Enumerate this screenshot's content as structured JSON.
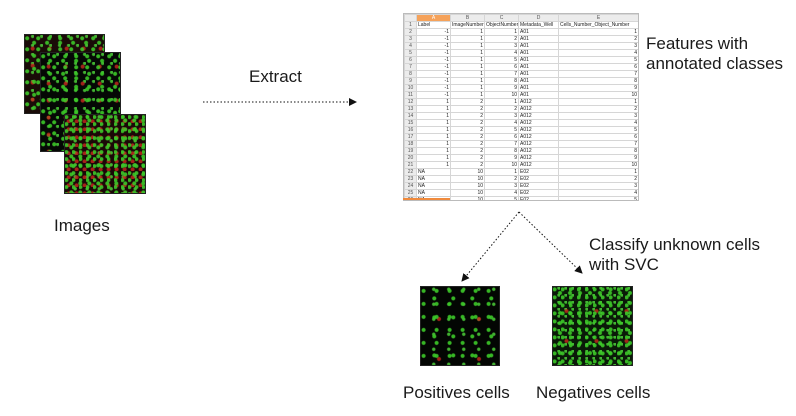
{
  "labels": {
    "extract": "Extract",
    "features": "Features with\nannotated classes",
    "images": "Images",
    "classify": "Classify unknown cells\nwith SVC",
    "positives": "Positives cells",
    "negatives": "Negatives cells"
  },
  "spreadsheet": {
    "column_letters": [
      "",
      "A",
      "B",
      "C",
      "D",
      "E"
    ],
    "headers": [
      "Label",
      "ImageNumber",
      "ObjectNumber",
      "Metadata_Well",
      "Cells_Number_Object_Number"
    ],
    "rows": [
      {
        "n": "2",
        "cells": [
          "-1",
          "1",
          "1",
          "A01",
          "1"
        ]
      },
      {
        "n": "3",
        "cells": [
          "-1",
          "1",
          "2",
          "A01",
          "2"
        ]
      },
      {
        "n": "4",
        "cells": [
          "-1",
          "1",
          "3",
          "A01",
          "3"
        ]
      },
      {
        "n": "5",
        "cells": [
          "-1",
          "1",
          "4",
          "A01",
          "4"
        ]
      },
      {
        "n": "6",
        "cells": [
          "-1",
          "1",
          "5",
          "A01",
          "5"
        ]
      },
      {
        "n": "7",
        "cells": [
          "-1",
          "1",
          "6",
          "A01",
          "6"
        ]
      },
      {
        "n": "8",
        "cells": [
          "-1",
          "1",
          "7",
          "A01",
          "7"
        ]
      },
      {
        "n": "9",
        "cells": [
          "-1",
          "1",
          "8",
          "A01",
          "8"
        ]
      },
      {
        "n": "10",
        "cells": [
          "-1",
          "1",
          "9",
          "A01",
          "9"
        ]
      },
      {
        "n": "11",
        "cells": [
          "-1",
          "1",
          "10",
          "A01",
          "10"
        ]
      },
      {
        "n": "12",
        "cells": [
          "1",
          "2",
          "1",
          "A012",
          "1"
        ]
      },
      {
        "n": "13",
        "cells": [
          "1",
          "2",
          "2",
          "A012",
          "2"
        ]
      },
      {
        "n": "14",
        "cells": [
          "1",
          "2",
          "3",
          "A012",
          "3"
        ]
      },
      {
        "n": "15",
        "cells": [
          "1",
          "2",
          "4",
          "A012",
          "4"
        ]
      },
      {
        "n": "16",
        "cells": [
          "1",
          "2",
          "5",
          "A012",
          "5"
        ]
      },
      {
        "n": "17",
        "cells": [
          "1",
          "2",
          "6",
          "A012",
          "6"
        ]
      },
      {
        "n": "18",
        "cells": [
          "1",
          "2",
          "7",
          "A012",
          "7"
        ]
      },
      {
        "n": "19",
        "cells": [
          "1",
          "2",
          "8",
          "A012",
          "8"
        ]
      },
      {
        "n": "20",
        "cells": [
          "1",
          "2",
          "9",
          "A012",
          "9"
        ]
      },
      {
        "n": "21",
        "cells": [
          "1",
          "2",
          "10",
          "A012",
          "10"
        ]
      },
      {
        "n": "22",
        "cells": [
          "NA",
          "10",
          "1",
          "E02",
          "1"
        ]
      },
      {
        "n": "23",
        "cells": [
          "NA",
          "10",
          "2",
          "E02",
          "2"
        ]
      },
      {
        "n": "24",
        "cells": [
          "NA",
          "10",
          "3",
          "E02",
          "3"
        ]
      },
      {
        "n": "25",
        "cells": [
          "NA",
          "10",
          "4",
          "E02",
          "4"
        ]
      },
      {
        "n": "26",
        "cells": [
          "NA",
          "10",
          "5",
          "E02",
          "5"
        ]
      },
      {
        "n": "27",
        "cells": [
          "NA",
          "10",
          "6",
          "E02",
          "6"
        ]
      },
      {
        "n": "28",
        "cells": [
          "NA",
          "10",
          "7",
          "E02",
          "7"
        ]
      }
    ]
  },
  "colors": {
    "selected_column": "#f5a25a",
    "cell_green": "#3cc828",
    "cell_red": "#c8281e"
  }
}
